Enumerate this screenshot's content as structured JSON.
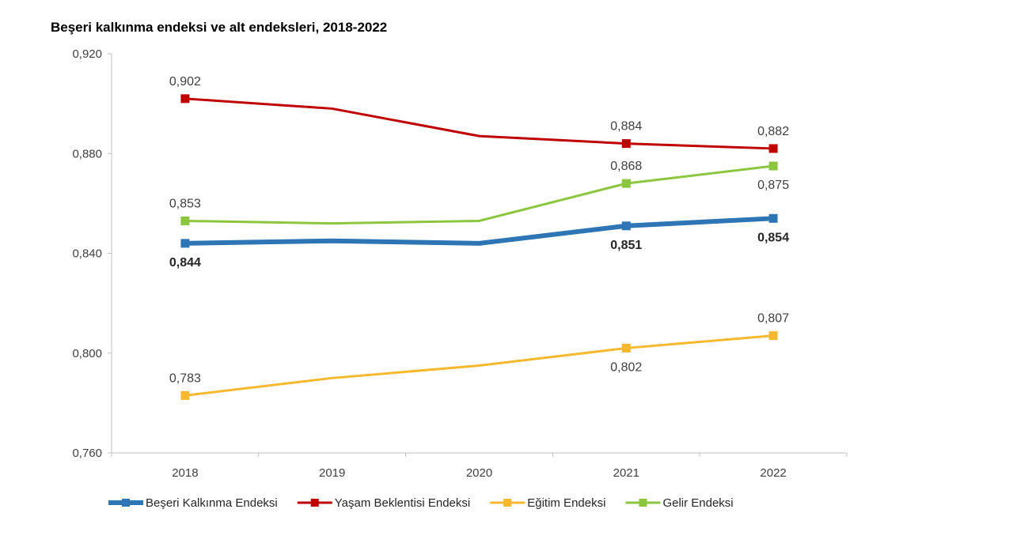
{
  "chart_data": {
    "type": "line",
    "title": "Beşeri kalkınma endeksi ve alt endeksleri, 2018-2022",
    "xlabel": "",
    "ylabel": "",
    "categories": [
      "2018",
      "2019",
      "2020",
      "2021",
      "2022"
    ],
    "ylim": [
      0.76,
      0.92
    ],
    "yticks": [
      "0,760",
      "0,800",
      "0,840",
      "0,880",
      "0,920"
    ],
    "grid": false,
    "legend_position": "bottom",
    "series": [
      {
        "name": "Beşeri Kalkınma Endeksi",
        "color": "#2E75B6",
        "values": [
          0.844,
          0.845,
          0.844,
          0.851,
          0.854
        ],
        "labels": [
          "0,844",
          "",
          "",
          "0,851",
          "0,854"
        ]
      },
      {
        "name": "Yaşam Beklentisi Endeksi",
        "color": "#C00000",
        "values": [
          0.902,
          0.898,
          0.887,
          0.884,
          0.882
        ],
        "labels": [
          "0,902",
          "",
          "",
          "0,884",
          "0,882"
        ]
      },
      {
        "name": "Eğitim Endeksi",
        "color": "#F5B82E",
        "values": [
          0.783,
          0.79,
          0.795,
          0.802,
          0.807
        ],
        "labels": [
          "0,783",
          "",
          "",
          "0,802",
          "0,807"
        ]
      },
      {
        "name": "Gelir Endeksi",
        "color": "#8CC63F",
        "values": [
          0.853,
          0.852,
          0.853,
          0.868,
          0.875
        ],
        "labels": [
          "0,853",
          "",
          "",
          "0,868",
          "0,875"
        ]
      }
    ]
  }
}
